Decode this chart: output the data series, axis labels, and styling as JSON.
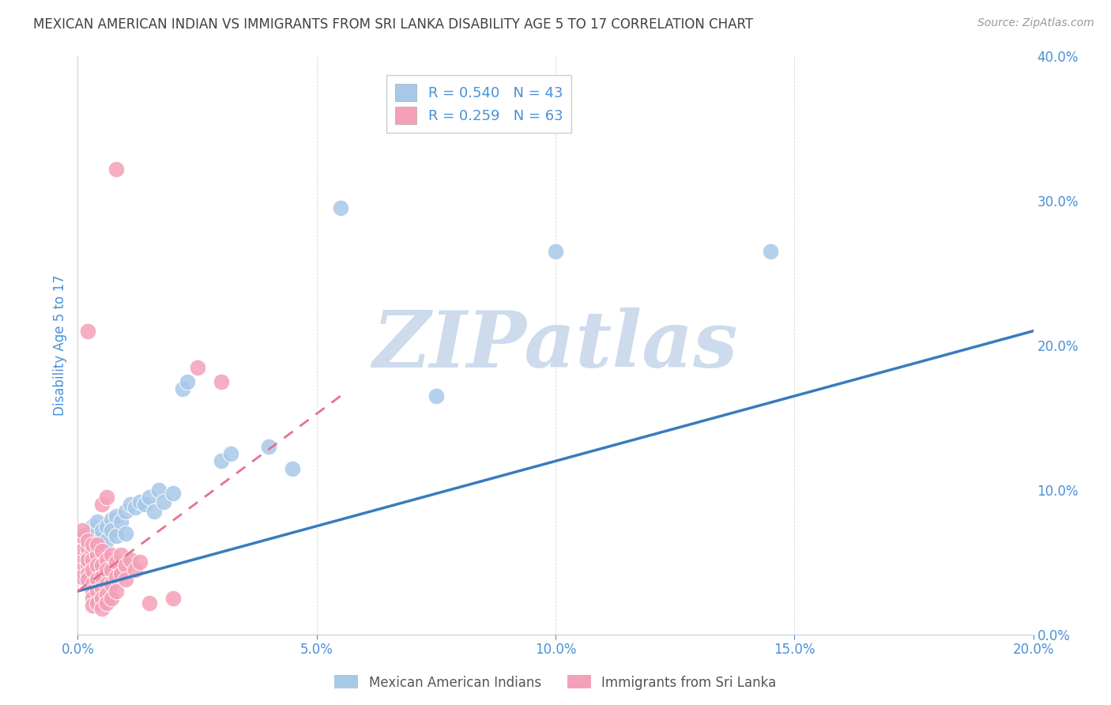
{
  "title": "MEXICAN AMERICAN INDIAN VS IMMIGRANTS FROM SRI LANKA DISABILITY AGE 5 TO 17 CORRELATION CHART",
  "source": "Source: ZipAtlas.com",
  "ylabel": "Disability Age 5 to 17",
  "xlim": [
    0.0,
    0.2
  ],
  "ylim": [
    0.0,
    0.4
  ],
  "xticks": [
    0.0,
    0.05,
    0.1,
    0.15,
    0.2
  ],
  "yticks": [
    0.0,
    0.1,
    0.2,
    0.3,
    0.4
  ],
  "xtick_labels": [
    "0.0%",
    "5.0%",
    "10.0%",
    "15.0%",
    "20.0%"
  ],
  "ytick_labels_right": [
    "0.0%",
    "10.0%",
    "20.0%",
    "30.0%",
    "40.0%"
  ],
  "watermark": "ZIPatlas",
  "blue_scatter_color": "#a8c8e8",
  "pink_scatter_color": "#f4a0b8",
  "blue_line_color": "#3a7abf",
  "pink_line_color": "#e87090",
  "legend_label_blue": "Mexican American Indians",
  "legend_label_pink": "Immigrants from Sri Lanka",
  "tick_color": "#4a90d9",
  "title_color": "#404040",
  "title_fontsize": 12,
  "source_fontsize": 10,
  "watermark_color": "#c8d8ea",
  "watermark_fontsize": 72,
  "background_color": "#ffffff",
  "grid_color": "#d0d8e0",
  "blue_points": [
    [
      0.001,
      0.06
    ],
    [
      0.001,
      0.055
    ],
    [
      0.002,
      0.06
    ],
    [
      0.002,
      0.065
    ],
    [
      0.002,
      0.07
    ],
    [
      0.003,
      0.055
    ],
    [
      0.003,
      0.068
    ],
    [
      0.003,
      0.075
    ],
    [
      0.003,
      0.072
    ],
    [
      0.004,
      0.062
    ],
    [
      0.004,
      0.058
    ],
    [
      0.004,
      0.078
    ],
    [
      0.005,
      0.068
    ],
    [
      0.005,
      0.072
    ],
    [
      0.005,
      0.06
    ],
    [
      0.006,
      0.075
    ],
    [
      0.006,
      0.065
    ],
    [
      0.007,
      0.08
    ],
    [
      0.007,
      0.072
    ],
    [
      0.008,
      0.082
    ],
    [
      0.008,
      0.068
    ],
    [
      0.009,
      0.078
    ],
    [
      0.01,
      0.085
    ],
    [
      0.01,
      0.07
    ],
    [
      0.011,
      0.09
    ],
    [
      0.012,
      0.088
    ],
    [
      0.013,
      0.092
    ],
    [
      0.014,
      0.09
    ],
    [
      0.015,
      0.095
    ],
    [
      0.016,
      0.085
    ],
    [
      0.017,
      0.1
    ],
    [
      0.018,
      0.092
    ],
    [
      0.02,
      0.098
    ],
    [
      0.022,
      0.17
    ],
    [
      0.023,
      0.175
    ],
    [
      0.03,
      0.12
    ],
    [
      0.032,
      0.125
    ],
    [
      0.04,
      0.13
    ],
    [
      0.045,
      0.115
    ],
    [
      0.055,
      0.295
    ],
    [
      0.075,
      0.165
    ],
    [
      0.1,
      0.265
    ],
    [
      0.145,
      0.265
    ]
  ],
  "pink_points": [
    [
      0.0005,
      0.06
    ],
    [
      0.0005,
      0.055
    ],
    [
      0.001,
      0.062
    ],
    [
      0.001,
      0.058
    ],
    [
      0.001,
      0.05
    ],
    [
      0.001,
      0.068
    ],
    [
      0.001,
      0.045
    ],
    [
      0.001,
      0.04
    ],
    [
      0.001,
      0.072
    ],
    [
      0.002,
      0.055
    ],
    [
      0.002,
      0.06
    ],
    [
      0.002,
      0.048
    ],
    [
      0.002,
      0.065
    ],
    [
      0.002,
      0.052
    ],
    [
      0.002,
      0.042
    ],
    [
      0.002,
      0.038
    ],
    [
      0.003,
      0.058
    ],
    [
      0.003,
      0.052
    ],
    [
      0.003,
      0.045
    ],
    [
      0.003,
      0.062
    ],
    [
      0.003,
      0.035
    ],
    [
      0.003,
      0.03
    ],
    [
      0.003,
      0.025
    ],
    [
      0.003,
      0.02
    ],
    [
      0.004,
      0.055
    ],
    [
      0.004,
      0.048
    ],
    [
      0.004,
      0.062
    ],
    [
      0.004,
      0.038
    ],
    [
      0.004,
      0.03
    ],
    [
      0.004,
      0.022
    ],
    [
      0.005,
      0.058
    ],
    [
      0.005,
      0.048
    ],
    [
      0.005,
      0.04
    ],
    [
      0.005,
      0.032
    ],
    [
      0.005,
      0.025
    ],
    [
      0.005,
      0.018
    ],
    [
      0.006,
      0.052
    ],
    [
      0.006,
      0.045
    ],
    [
      0.006,
      0.035
    ],
    [
      0.006,
      0.028
    ],
    [
      0.006,
      0.022
    ],
    [
      0.007,
      0.055
    ],
    [
      0.007,
      0.045
    ],
    [
      0.007,
      0.035
    ],
    [
      0.007,
      0.025
    ],
    [
      0.008,
      0.05
    ],
    [
      0.008,
      0.04
    ],
    [
      0.008,
      0.03
    ],
    [
      0.009,
      0.055
    ],
    [
      0.009,
      0.042
    ],
    [
      0.01,
      0.048
    ],
    [
      0.01,
      0.038
    ],
    [
      0.011,
      0.052
    ],
    [
      0.012,
      0.045
    ],
    [
      0.013,
      0.05
    ],
    [
      0.015,
      0.022
    ],
    [
      0.02,
      0.025
    ],
    [
      0.005,
      0.09
    ],
    [
      0.006,
      0.095
    ],
    [
      0.002,
      0.21
    ],
    [
      0.008,
      0.322
    ],
    [
      0.025,
      0.185
    ],
    [
      0.03,
      0.175
    ]
  ],
  "blue_line": {
    "x0": 0.0,
    "y0": 0.03,
    "x1": 0.2,
    "y1": 0.21
  },
  "pink_line": {
    "x0": 0.0,
    "y0": 0.03,
    "x1": 0.055,
    "y1": 0.165
  }
}
